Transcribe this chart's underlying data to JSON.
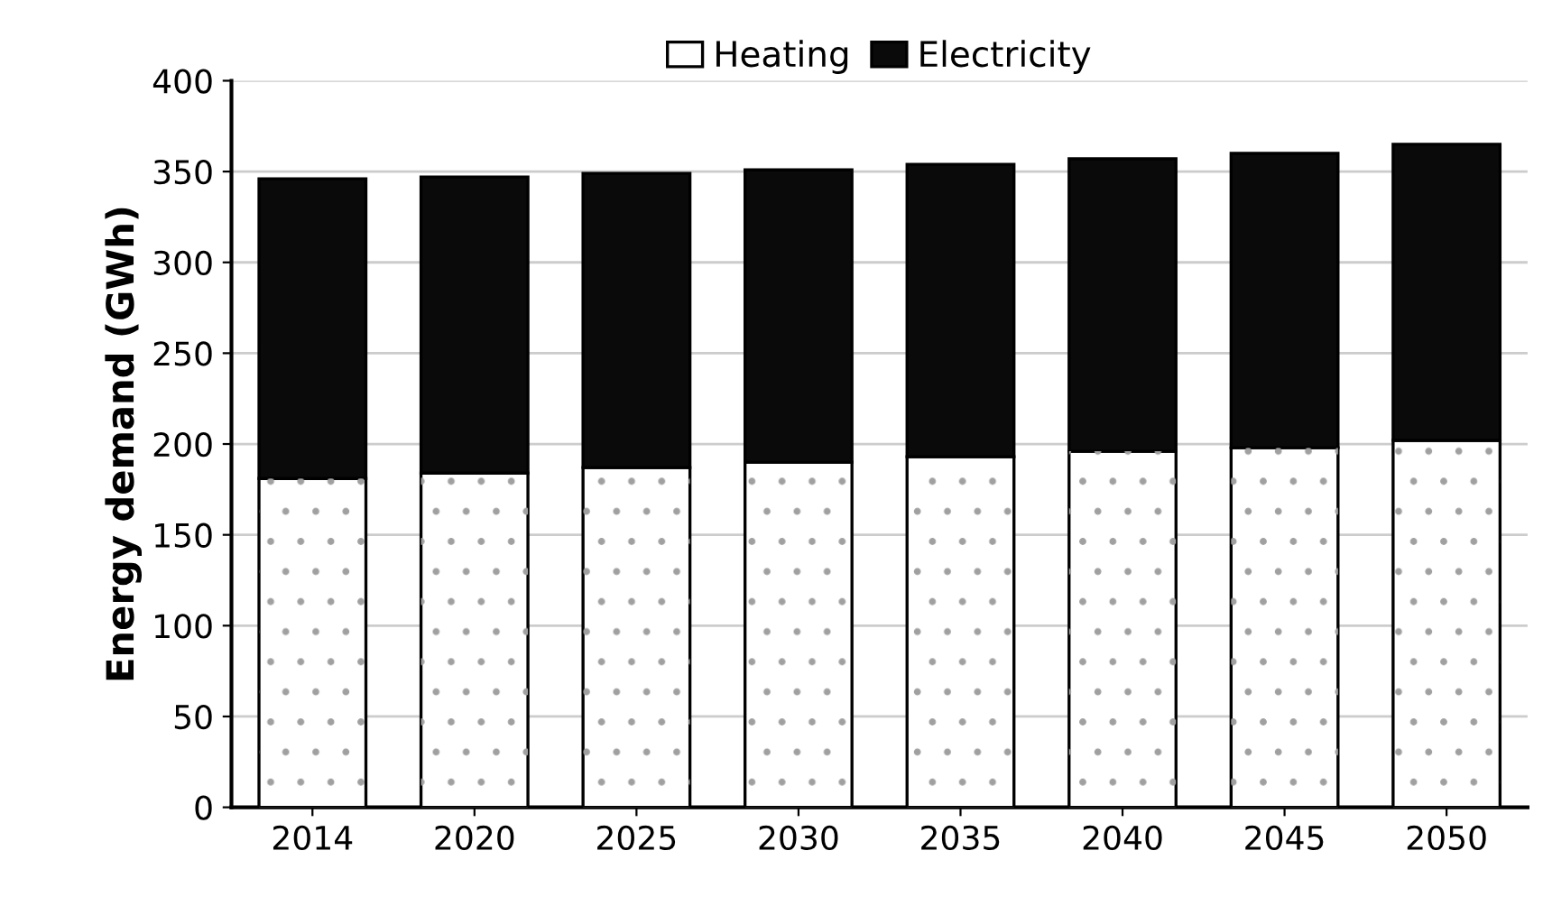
{
  "chart_data": {
    "type": "bar",
    "stacked": true,
    "ylabel": "Energy demand (GWh)",
    "categories": [
      "2014",
      "2020",
      "2025",
      "2030",
      "2035",
      "2040",
      "2045",
      "2050"
    ],
    "series": [
      {
        "name": "Heating",
        "color": "#ffffff",
        "values": [
          181,
          184,
          187,
          190,
          193,
          196,
          198,
          202
        ]
      },
      {
        "name": "Electricity",
        "color": "#0a0a0a",
        "values": [
          165,
          163,
          162,
          161,
          161,
          161,
          162,
          163
        ]
      }
    ],
    "ylim": [
      0,
      400
    ],
    "yticks": [
      0,
      50,
      100,
      150,
      200,
      250,
      300,
      350,
      400
    ],
    "grid": "y",
    "legend": "top"
  }
}
